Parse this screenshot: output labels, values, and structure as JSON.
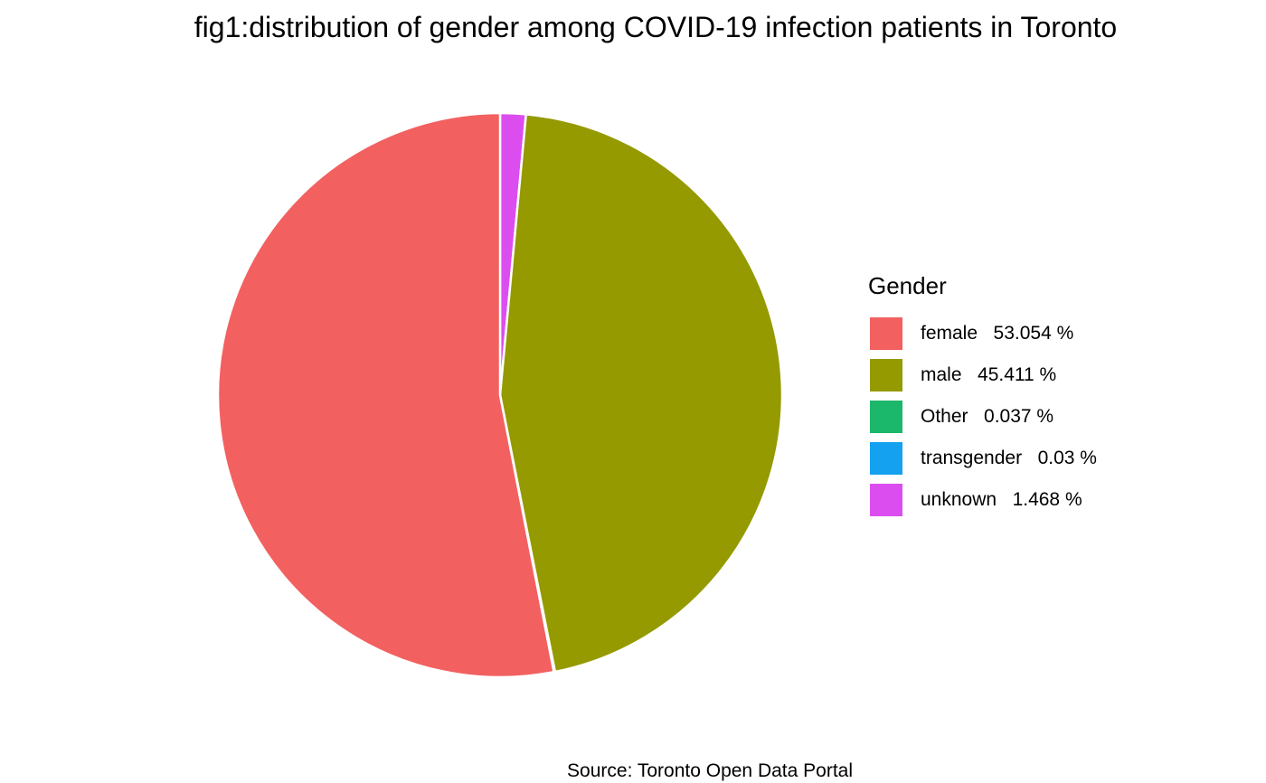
{
  "chart_data": {
    "type": "pie",
    "title": "fig1:distribution of gender among COVID-19 infection patients in Toronto",
    "legend_title": "Gender",
    "legend_position": "right",
    "caption": "Source: Toronto Open Data Portal",
    "slices": [
      {
        "category": "female",
        "value": 53.054,
        "label": "female   53.054 %",
        "color": "#F26060"
      },
      {
        "category": "male",
        "value": 45.411,
        "label": "male   45.411 %",
        "color": "#949A00"
      },
      {
        "category": "Other",
        "value": 0.037,
        "label": "Other   0.037 %",
        "color": "#1BB76A"
      },
      {
        "category": "transgender",
        "value": 0.03,
        "label": "transgender   0.03 %",
        "color": "#14A1F0"
      },
      {
        "category": "unknown",
        "value": 1.468,
        "label": "unknown   1.468 %",
        "color": "#DC4DF0"
      }
    ],
    "slice_order_clockwise_from_top": [
      "unknown",
      "male",
      "transgender",
      "Other",
      "female"
    ],
    "slice_border_color": "#FFFFFF",
    "background": "#FFFFFF"
  }
}
